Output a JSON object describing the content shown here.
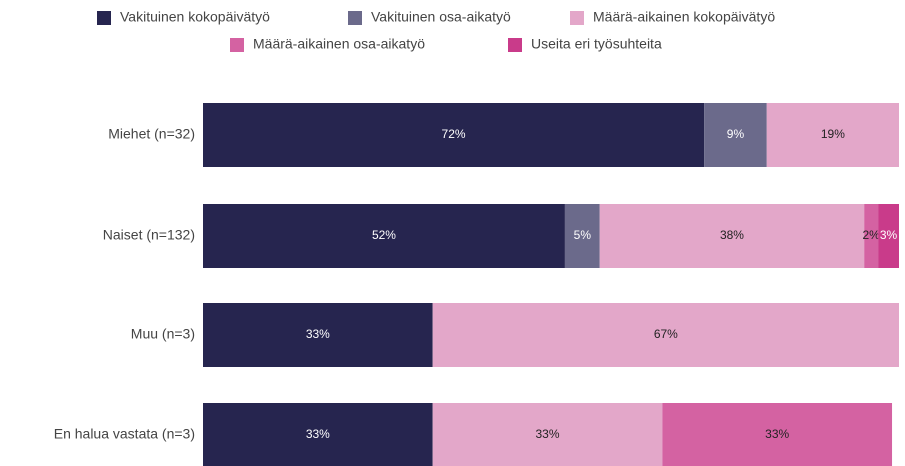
{
  "chart_data": {
    "type": "stacked-bar-horizontal",
    "categories": [
      "Miehet (n=32)",
      "Naiset (n=132)",
      "Muu (n=3)",
      "En halua vastata (n=3)"
    ],
    "xlim": [
      0,
      100
    ],
    "legend": "top",
    "series": [
      {
        "name": "Vakituinen kokopäivätyö",
        "color": "#26254f",
        "values": [
          72,
          52,
          33,
          33
        ],
        "value_labels": [
          "72%",
          "52%",
          "33%",
          "33%"
        ]
      },
      {
        "name": "Vakituinen osa-aikatyö",
        "color": "#6b6a8b",
        "values": [
          9,
          5,
          null,
          null
        ],
        "value_labels": [
          "9%",
          "5%",
          null,
          null
        ]
      },
      {
        "name": "Määrä-aikainen kokopäivätyö",
        "color": "#e3a7c9",
        "values": [
          19,
          38,
          67,
          33
        ],
        "value_labels": [
          "19%",
          "38%",
          "67%",
          "33%"
        ]
      },
      {
        "name": "Määrä-aikainen osa-aikatyö",
        "color": "#d462a2",
        "values": [
          null,
          2,
          null,
          33
        ],
        "value_labels": [
          null,
          "2%",
          null,
          "33%"
        ]
      },
      {
        "name": "Useita eri työsuhteita",
        "color": "#c93b8a",
        "values": [
          null,
          3,
          null,
          null
        ],
        "value_labels": [
          null,
          "3%",
          null,
          null
        ]
      }
    ]
  }
}
